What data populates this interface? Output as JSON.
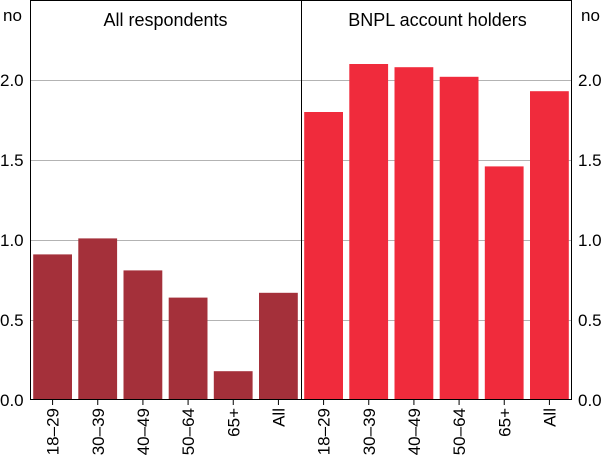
{
  "chart_data": {
    "type": "bar",
    "unit_left": "no",
    "unit_right": "no",
    "ylim": [
      0,
      2.5
    ],
    "yticks": [
      "0.0",
      "0.5",
      "1.0",
      "1.5",
      "2.0"
    ],
    "ytick_values": [
      0,
      0.5,
      1.0,
      1.5,
      2.0
    ],
    "grid": true,
    "panels": [
      {
        "title": "All respondents",
        "color": "#a4303a",
        "categories": [
          "18–29",
          "30–39",
          "40–49",
          "50–64",
          "65+",
          "All"
        ],
        "values": [
          0.91,
          1.01,
          0.81,
          0.64,
          0.18,
          0.67
        ]
      },
      {
        "title": "BNPL account holders",
        "color": "#f02b3c",
        "categories": [
          "18–29",
          "30–39",
          "40–49",
          "50–64",
          "65+",
          "All"
        ],
        "values": [
          1.8,
          2.1,
          2.08,
          2.02,
          1.46,
          1.93
        ]
      }
    ]
  }
}
